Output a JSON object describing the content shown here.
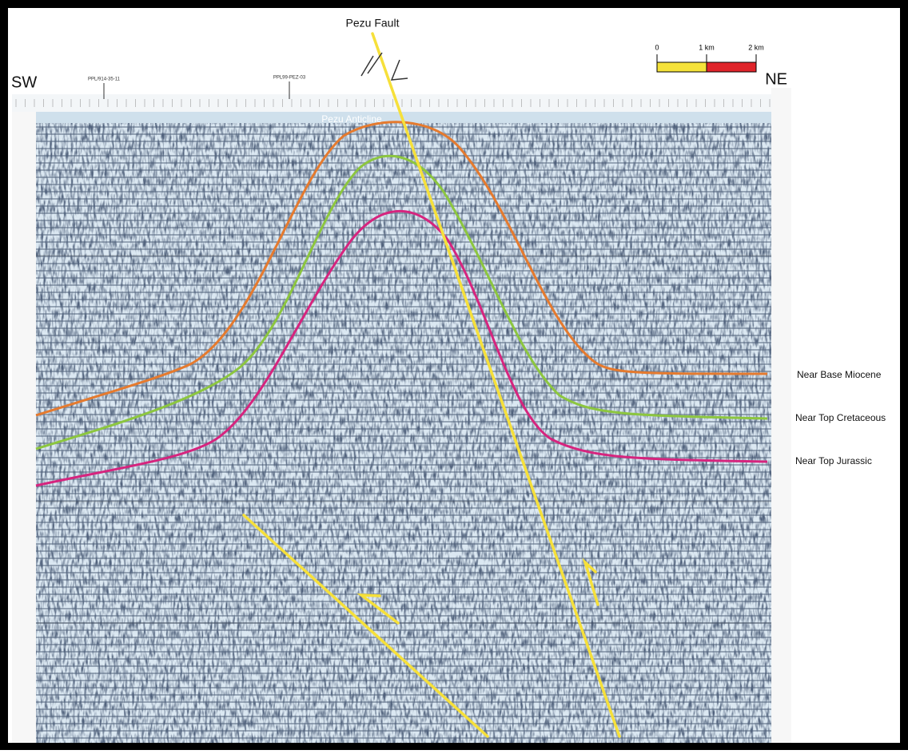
{
  "title": "Pezu Fault",
  "directions": {
    "left": "SW",
    "right": "NE"
  },
  "structure_label": "Pezu Anticline",
  "wells": [
    "PPL/914-35-11",
    "PPL99-PEZ-03"
  ],
  "scale_bar": {
    "labels": [
      "0",
      "1 km",
      "2 km"
    ],
    "colors": [
      "#f5e23a",
      "#e0242a"
    ]
  },
  "horizons": [
    {
      "label": "Near Base Miocene",
      "color": "#e57a2e"
    },
    {
      "label": "Near Top Cretaceous",
      "color": "#8cc63f"
    },
    {
      "label": "Near Top Jurassic",
      "color": "#d6247e"
    }
  ],
  "fault_color": "#f6e03a"
}
